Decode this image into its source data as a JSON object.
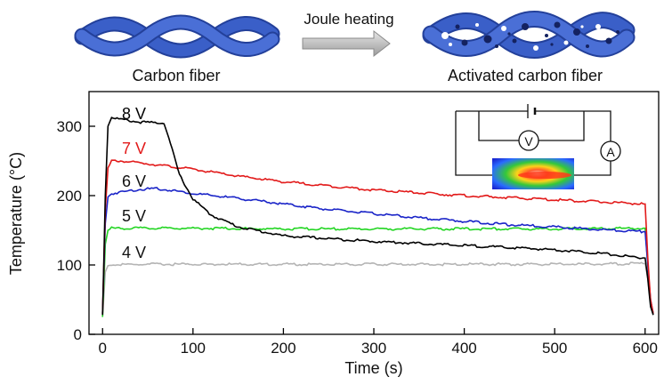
{
  "header": {
    "carbon_fiber_label": "Carbon fiber",
    "process_label": "Joule heating",
    "activated_label": "Activated carbon fiber"
  },
  "inset": {
    "voltmeter_symbol": "V",
    "ammeter_symbol": "A"
  },
  "colors": {
    "fiber_blue": "#3a5fc8",
    "fiber_dark": "#23409a",
    "pore_dark": "#1a2a66",
    "arrow_gray": "#b8b8b8"
  },
  "chart_data": {
    "type": "line",
    "xlabel": "Time (s)",
    "ylabel": "Temperature (°C)",
    "xlim": [
      -15,
      615
    ],
    "ylim": [
      0,
      350
    ],
    "xticks": [
      0,
      100,
      200,
      300,
      400,
      500,
      600
    ],
    "yticks": [
      0,
      100,
      200,
      300
    ],
    "grid": false,
    "legend": "inline labels next to curves",
    "series": [
      {
        "name": "8 V",
        "color": "#000000",
        "x": [
          0,
          3,
          6,
          10,
          20,
          40,
          60,
          68,
          75,
          85,
          100,
          120,
          150,
          200,
          250,
          300,
          350,
          400,
          450,
          500,
          550,
          590,
          600,
          603,
          606,
          609
        ],
        "y": [
          28,
          200,
          300,
          313,
          310,
          306,
          305,
          305,
          275,
          230,
          195,
          172,
          155,
          142,
          138,
          134,
          131,
          128,
          125,
          122,
          117,
          111,
          110,
          80,
          40,
          28
        ]
      },
      {
        "name": "7 V",
        "color": "#e21a1a",
        "x": [
          0,
          3,
          6,
          10,
          20,
          50,
          100,
          150,
          200,
          250,
          300,
          350,
          400,
          450,
          500,
          550,
          600,
          603,
          606,
          609
        ],
        "y": [
          30,
          180,
          240,
          250,
          250,
          246,
          238,
          228,
          220,
          214,
          208,
          204,
          200,
          197,
          194,
          191,
          188,
          110,
          50,
          30
        ]
      },
      {
        "name": "6 V",
        "color": "#1a24c8",
        "x": [
          0,
          3,
          6,
          10,
          20,
          40,
          60,
          80,
          100,
          150,
          200,
          250,
          300,
          350,
          400,
          450,
          500,
          550,
          600,
          603,
          606,
          609
        ],
        "y": [
          30,
          160,
          198,
          203,
          205,
          209,
          210,
          207,
          203,
          196,
          188,
          180,
          174,
          168,
          163,
          158,
          155,
          151,
          148,
          100,
          50,
          30
        ]
      },
      {
        "name": "5 V",
        "color": "#22d522",
        "x": [
          0,
          3,
          6,
          10,
          50,
          100,
          200,
          300,
          400,
          500,
          600,
          603,
          606,
          609
        ],
        "y": [
          25,
          130,
          150,
          153,
          153,
          153,
          152,
          152,
          152,
          152,
          153,
          100,
          45,
          30
        ]
      },
      {
        "name": "4 V",
        "color": "#b4b4b4",
        "x": [
          0,
          3,
          6,
          10,
          50,
          100,
          200,
          300,
          400,
          500,
          600,
          603,
          606,
          609
        ],
        "y": [
          25,
          90,
          99,
          100,
          101,
          101,
          101,
          101,
          101,
          101,
          102,
          80,
          45,
          30
        ]
      }
    ]
  }
}
